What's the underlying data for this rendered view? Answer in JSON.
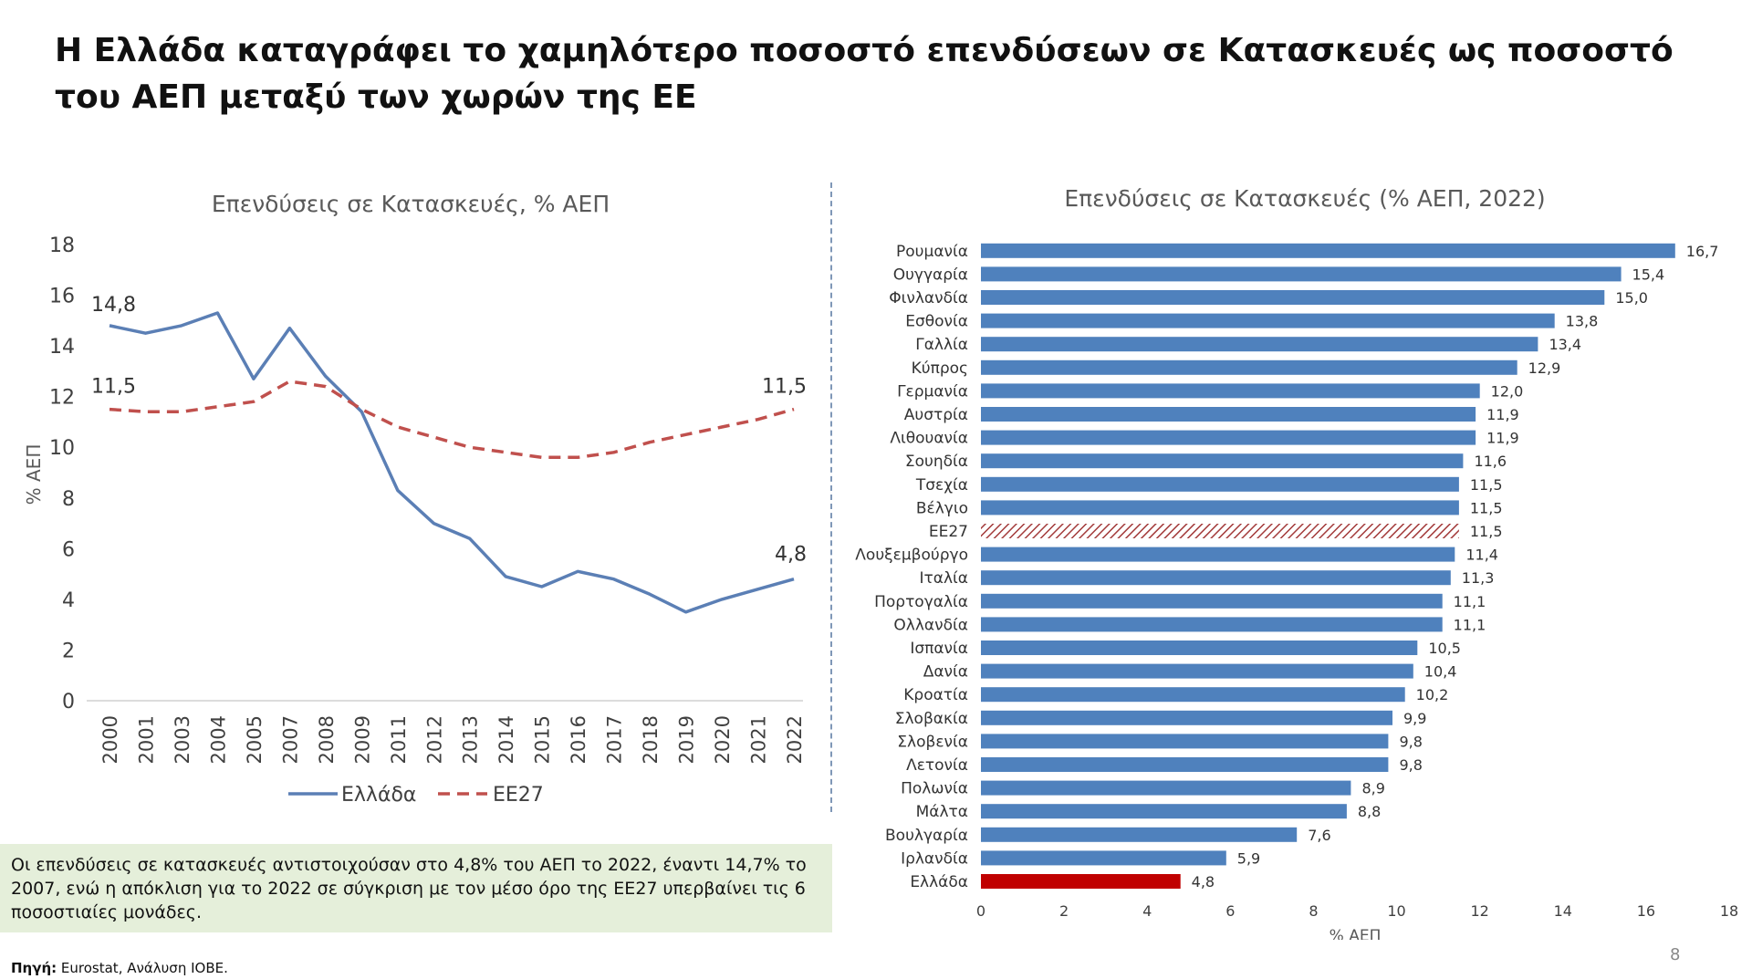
{
  "title": "Η Ελλάδα καταγράφει το χαμηλότερο ποσοστό επενδύσεων σε Κατασκευές ως ποσοστό του ΑΕΠ μεταξύ των χωρών της ΕΕ",
  "chart_data": [
    {
      "type": "line",
      "title": "Επενδύσεις σε Κατασκευές, % ΑΕΠ",
      "ylabel": "% ΑΕΠ",
      "xlabel": "",
      "ylim": [
        0,
        18
      ],
      "yticks": [
        0,
        2,
        4,
        6,
        8,
        10,
        12,
        14,
        16,
        18
      ],
      "categories": [
        "2000",
        "2001",
        "2003",
        "2004",
        "2005",
        "2007",
        "2008",
        "2009",
        "2011",
        "2012",
        "2013",
        "2014",
        "2015",
        "2016",
        "2017",
        "2018",
        "2019",
        "2020",
        "2021",
        "2022"
      ],
      "series": [
        {
          "name": "Ελλάδα",
          "color": "#5b7fb5",
          "style": "solid",
          "values": [
            14.8,
            14.5,
            14.8,
            15.3,
            12.7,
            14.7,
            12.8,
            11.4,
            8.3,
            7.0,
            6.4,
            4.9,
            4.5,
            5.1,
            4.8,
            4.2,
            3.5,
            4.0,
            4.4,
            4.8
          ]
        },
        {
          "name": "ΕΕ27",
          "color": "#c0504d",
          "style": "dashed",
          "values": [
            11.5,
            11.4,
            11.4,
            11.6,
            11.8,
            12.6,
            12.4,
            11.5,
            10.8,
            10.4,
            10.0,
            9.8,
            9.6,
            9.6,
            9.8,
            10.2,
            10.5,
            10.8,
            11.1,
            11.5
          ]
        }
      ],
      "annotations": [
        "14,8",
        "11,5",
        "11,5",
        "4,8"
      ],
      "legend": "bottom",
      "grid": false
    },
    {
      "type": "bar",
      "orientation": "horizontal",
      "title": "Επενδύσεις σε Κατασκευές (% ΑΕΠ, 2022)",
      "xlabel": "% ΑΕΠ",
      "xlim": [
        0,
        18
      ],
      "xticks": [
        0,
        2,
        4,
        6,
        8,
        10,
        12,
        14,
        16,
        18
      ],
      "categories": [
        "Ρουμανία",
        "Ουγγαρία",
        "Φινλανδία",
        "Εσθονία",
        "Γαλλία",
        "Κύπρος",
        "Γερμανία",
        "Αυστρία",
        "Λιθουανία",
        "Σουηδία",
        "Τσεχία",
        "Βέλγιο",
        "ΕΕ27",
        "Λουξεμβούργο",
        "Ιταλία",
        "Πορτογαλία",
        "Ολλανδία",
        "Ισπανία",
        "Δανία",
        "Κροατία",
        "Σλοβακία",
        "Σλοβενία",
        "Λετονία",
        "Πολωνία",
        "Μάλτα",
        "Βουλγαρία",
        "Ιρλανδία",
        "Ελλάδα"
      ],
      "values": [
        16.7,
        15.4,
        15.0,
        13.8,
        13.4,
        12.9,
        12.0,
        11.9,
        11.9,
        11.6,
        11.5,
        11.5,
        11.5,
        11.4,
        11.3,
        11.1,
        11.1,
        10.5,
        10.4,
        10.2,
        9.9,
        9.8,
        9.8,
        8.9,
        8.8,
        7.6,
        5.9,
        4.8
      ],
      "value_labels": [
        "16,7",
        "15,4",
        "15,0",
        "13,8",
        "13,4",
        "12,9",
        "12,0",
        "11,9",
        "11,9",
        "11,6",
        "11,5",
        "11,5",
        "11,5",
        "11,4",
        "11,3",
        "11,1",
        "11,1",
        "10,5",
        "10,4",
        "10,2",
        "9,9",
        "9,8",
        "9,8",
        "8,9",
        "8,8",
        "7,6",
        "5,9",
        "4,8"
      ],
      "colors": {
        "default": "#4f81bd",
        "highlight": "#c00000",
        "eu_hatch": "#a33a3a"
      },
      "highlight": "Ελλάδα",
      "hatched": "ΕΕ27",
      "grid": false
    }
  ],
  "note": "Οι επενδύσεις σε κατασκευές αντιστοιχούσαν στο 4,8% του ΑΕΠ το 2022, έναντι 14,7% το 2007, ενώ η απόκλιση για το 2022 σε σύγκριση με τον μέσο όρο της ΕΕ27 υπερβαίνει τις 6 ποσοστιαίες μονάδες.",
  "source_label": "Πηγή:",
  "source_text": "Eurostat, Ανάλυση ΙΟΒΕ.",
  "page_number": "8"
}
